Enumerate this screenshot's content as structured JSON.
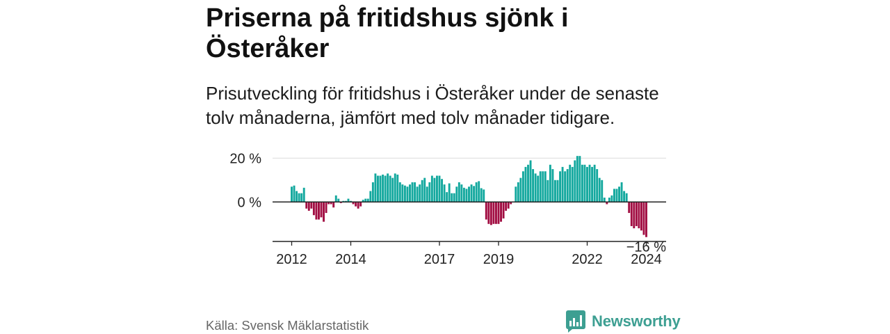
{
  "chart_data": {
    "type": "bar",
    "title": "Priserna på fritidshus sjönk i Österåker",
    "subtitle": "Prisutveckling för fritidshus i Österåker under de senaste tolv månaderna, jämfört med tolv månader tidigare.",
    "xlabel": "",
    "ylabel": "",
    "x_start": "2012-01",
    "x_end": "2024-01",
    "values": [
      7,
      7.5,
      5,
      4,
      4,
      6.5,
      -3,
      -4,
      -3,
      -6,
      -8,
      -8,
      -7,
      -9,
      -5,
      -1,
      -1,
      -2.5,
      3,
      1.5,
      -0.5,
      0.5,
      0.5,
      1.5,
      0.5,
      -1,
      -2,
      -3,
      -2,
      1,
      1.5,
      1.5,
      5,
      9,
      13,
      12,
      12,
      12.5,
      12,
      13,
      12,
      11,
      13,
      12.5,
      9,
      8,
      7.5,
      7,
      8,
      9,
      9,
      7,
      8,
      10,
      11,
      7,
      9,
      12,
      11,
      12,
      12,
      10.5,
      8,
      4.5,
      8.5,
      4,
      4,
      7,
      9,
      8,
      6.5,
      6,
      7,
      8,
      7.3,
      9,
      9.5,
      6.3,
      5.7,
      -8,
      -10,
      -10.5,
      -10,
      -10,
      -10,
      -9,
      -7.5,
      -4,
      -3,
      -1,
      0,
      7,
      9,
      11,
      14,
      16,
      17,
      19,
      15,
      13,
      12,
      14,
      14,
      14,
      10,
      17,
      15,
      10,
      10,
      14,
      16,
      14,
      15,
      17,
      16,
      19,
      21,
      21,
      17,
      17,
      16,
      17,
      16,
      17,
      15,
      11,
      10,
      2,
      -1,
      2,
      3,
      6,
      6,
      7,
      9,
      5,
      4,
      -5,
      -11,
      -12,
      -11,
      -12,
      -13,
      -15,
      -16
    ],
    "ylim": [
      -18,
      22
    ],
    "y_ticks": [
      {
        "value": 20,
        "label": "20 %"
      },
      {
        "value": 0,
        "label": "0 %"
      }
    ],
    "x_ticks": [
      "2012",
      "2014",
      "2017",
      "2019",
      "2022",
      "2024"
    ],
    "grid": true,
    "annotations": [
      {
        "text": "−16 %",
        "x": "2024-01",
        "y": -16
      }
    ]
  },
  "source": "Källa: Svensk Mäklarstatistik",
  "brand": {
    "name": "Newsworthy",
    "icon": "bar-chart-speech-bubble-icon"
  },
  "colors": {
    "positive": "#13a89e",
    "negative": "#a10d42",
    "brand": "#3d9f92",
    "title": "#111111",
    "source": "#666666",
    "axis": "#222222",
    "grid": "#dcdcdc"
  }
}
